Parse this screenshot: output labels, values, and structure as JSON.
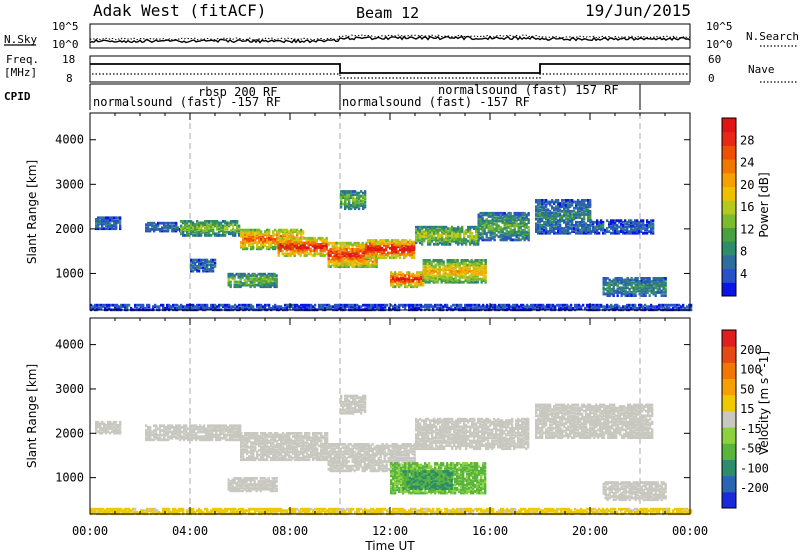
{
  "header": {
    "title": "Adak West (fitACF)",
    "beam": "Beam 12",
    "date": "19/Jun/2015"
  },
  "summary_panels": {
    "left_labels": [
      "N.Sky",
      "Freq.",
      "[MHz]",
      "CPID"
    ],
    "right_labels": [
      "N.Search",
      "Nave"
    ],
    "noise_ticks": [
      "10^5",
      "10^0"
    ],
    "noise_ticks_right": [
      "10^5",
      "10^0"
    ],
    "freq_ticks": [
      "18",
      "8"
    ],
    "nave_ticks": [
      "60",
      "0"
    ]
  },
  "cpid_segments": [
    {
      "label": "normalsound (fast) -157 RF",
      "start": 0.0,
      "end": 10.0
    },
    {
      "label": "rbsp 200 RF",
      "start": 4.0,
      "end": 10.0
    },
    {
      "label": "normalsound (fast) -157 RF",
      "start": 10.0,
      "end": 18.0
    },
    {
      "label": "normalsound (fast) 157 RF",
      "start": 16.0,
      "end": 22.0
    }
  ],
  "colorbars": {
    "power": {
      "label": "Power [dB]",
      "ticks": [
        "28",
        "24",
        "20",
        "16",
        "12",
        "8",
        "4"
      ],
      "colors": [
        "#0a14e6",
        "#2850c8",
        "#2e6e9c",
        "#2e8c6a",
        "#49a040",
        "#7dbb2e",
        "#b4c81e",
        "#f0c000",
        "#f5a000",
        "#f07800",
        "#ec5000",
        "#e62814",
        "#e01414"
      ]
    },
    "velocity": {
      "label": "Velocity [m s^-1]",
      "ticks": [
        "200",
        "100",
        "50",
        "15",
        "-15",
        "-50",
        "-100",
        "-200"
      ],
      "colors": [
        "#1a2ad8",
        "#2a64b4",
        "#2e8c6a",
        "#58b43c",
        "#8cd23c",
        "#c8c8c0",
        "#f0c800",
        "#f5a000",
        "#f07800",
        "#e64a14",
        "#e01e1e"
      ]
    }
  },
  "chart_data": [
    {
      "type": "heatmap",
      "title": "Power",
      "xlabel": "Time UT",
      "ylabel": "Slant Range [km]",
      "x_ticks": [
        "00:00",
        "04:00",
        "08:00",
        "12:00",
        "16:00",
        "20:00",
        "00:00"
      ],
      "y_ticks": [
        "1000",
        "2000",
        "3000",
        "4000"
      ],
      "xlim": [
        0,
        24
      ],
      "ylim": [
        180,
        4600
      ],
      "colorbar_range": [
        0,
        30
      ],
      "regions": [
        {
          "t0": 0.2,
          "t1": 1.2,
          "r0": 2000,
          "r1": 2250,
          "value": 6
        },
        {
          "t0": 2.2,
          "t1": 3.6,
          "r0": 1950,
          "r1": 2150,
          "value": 6
        },
        {
          "t0": 3.6,
          "t1": 6.0,
          "r0": 1850,
          "r1": 2200,
          "value": 12
        },
        {
          "t0": 6.0,
          "t1": 8.5,
          "r0": 1550,
          "r1": 2000,
          "value": 22
        },
        {
          "t0": 7.5,
          "t1": 9.5,
          "r0": 1400,
          "r1": 1800,
          "value": 27
        },
        {
          "t0": 9.5,
          "t1": 11.5,
          "r0": 1150,
          "r1": 1700,
          "value": 25
        },
        {
          "t0": 11.0,
          "t1": 13.0,
          "r0": 1350,
          "r1": 1750,
          "value": 28
        },
        {
          "t0": 13.0,
          "t1": 15.5,
          "r0": 1650,
          "r1": 2050,
          "value": 14
        },
        {
          "t0": 15.5,
          "t1": 17.5,
          "r0": 1750,
          "r1": 2350,
          "value": 10
        },
        {
          "t0": 17.8,
          "t1": 20.0,
          "r0": 1900,
          "r1": 2650,
          "value": 7
        },
        {
          "t0": 20.0,
          "t1": 22.5,
          "r0": 1900,
          "r1": 2200,
          "value": 5
        },
        {
          "t0": 10.0,
          "t1": 11.0,
          "r0": 2450,
          "r1": 2850,
          "value": 12
        },
        {
          "t0": 12.0,
          "t1": 13.3,
          "r0": 700,
          "r1": 1050,
          "value": 26
        },
        {
          "t0": 13.3,
          "t1": 15.8,
          "r0": 800,
          "r1": 1300,
          "value": 18
        },
        {
          "t0": 5.5,
          "t1": 7.5,
          "r0": 700,
          "r1": 1000,
          "value": 12
        },
        {
          "t0": 4.0,
          "t1": 5.0,
          "r0": 1050,
          "r1": 1300,
          "value": 6
        },
        {
          "t0": 20.5,
          "t1": 23.0,
          "r0": 500,
          "r1": 900,
          "value": 8
        },
        {
          "t0": 0.0,
          "t1": 24.0,
          "r0": 180,
          "r1": 300,
          "value": 4
        }
      ]
    },
    {
      "type": "heatmap",
      "title": "Velocity",
      "xlabel": "Time UT",
      "ylabel": "Slant Range [km]",
      "x_ticks": [
        "00:00",
        "04:00",
        "08:00",
        "12:00",
        "16:00",
        "20:00",
        "00:00"
      ],
      "y_ticks": [
        "1000",
        "2000",
        "3000",
        "4000"
      ],
      "xlim": [
        0,
        24
      ],
      "ylim": [
        180,
        4600
      ],
      "colorbar_range": [
        -200,
        200
      ],
      "regions": [
        {
          "t0": 0.2,
          "t1": 1.2,
          "r0": 2000,
          "r1": 2250,
          "value": 0
        },
        {
          "t0": 2.2,
          "t1": 6.0,
          "r0": 1850,
          "r1": 2200,
          "value": 0
        },
        {
          "t0": 6.0,
          "t1": 9.5,
          "r0": 1400,
          "r1": 2000,
          "value": 0
        },
        {
          "t0": 9.5,
          "t1": 13.0,
          "r0": 1150,
          "r1": 1750,
          "value": 0
        },
        {
          "t0": 13.0,
          "t1": 17.5,
          "r0": 1650,
          "r1": 2350,
          "value": 0
        },
        {
          "t0": 17.8,
          "t1": 22.5,
          "r0": 1900,
          "r1": 2650,
          "value": 0
        },
        {
          "t0": 12.0,
          "t1": 15.8,
          "r0": 650,
          "r1": 1350,
          "value": -60
        },
        {
          "t0": 12.5,
          "t1": 14.5,
          "r0": 750,
          "r1": 1150,
          "value": -90
        },
        {
          "t0": 10.0,
          "t1": 11.0,
          "r0": 2450,
          "r1": 2850,
          "value": 0
        },
        {
          "t0": 5.5,
          "t1": 7.5,
          "r0": 700,
          "r1": 1000,
          "value": 0
        },
        {
          "t0": 20.5,
          "t1": 23.0,
          "r0": 500,
          "r1": 900,
          "value": 0
        },
        {
          "t0": 0.0,
          "t1": 24.0,
          "r0": 180,
          "r1": 300,
          "value": 30
        }
      ]
    }
  ]
}
